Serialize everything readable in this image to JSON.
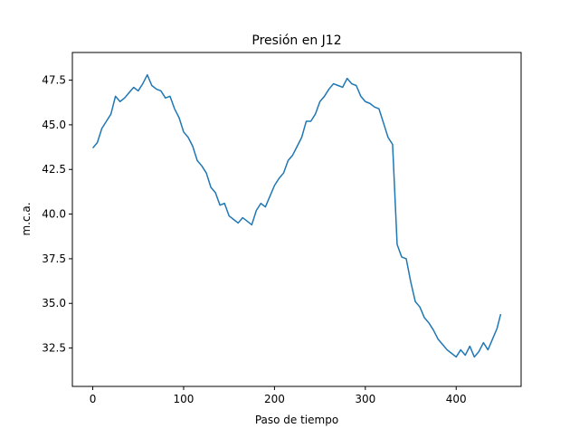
{
  "chart_data": {
    "type": "line",
    "title": "Presión en J12",
    "x_label": "Paso de tiempo",
    "y_label": "m.c.a.",
    "x": [
      0,
      5,
      10,
      15,
      20,
      25,
      30,
      35,
      40,
      45,
      50,
      55,
      60,
      65,
      70,
      75,
      80,
      85,
      90,
      95,
      100,
      105,
      110,
      115,
      120,
      125,
      130,
      135,
      140,
      145,
      150,
      155,
      160,
      165,
      170,
      175,
      180,
      185,
      190,
      195,
      200,
      205,
      210,
      215,
      220,
      225,
      230,
      235,
      240,
      245,
      250,
      255,
      260,
      265,
      270,
      275,
      280,
      285,
      290,
      295,
      300,
      305,
      310,
      315,
      320,
      325,
      330,
      335,
      340,
      345,
      350,
      355,
      360,
      365,
      370,
      375,
      380,
      385,
      390,
      395,
      400,
      405,
      410,
      415,
      420,
      425,
      430,
      435,
      440,
      445,
      449
    ],
    "series": [
      {
        "name": "J12",
        "color": "#1f77b4",
        "values": [
          43.7,
          44.0,
          44.8,
          45.2,
          45.6,
          46.6,
          46.3,
          46.5,
          46.8,
          47.1,
          46.9,
          47.3,
          47.8,
          47.2,
          47.0,
          46.9,
          46.5,
          46.6,
          45.9,
          45.4,
          44.6,
          44.3,
          43.8,
          43.0,
          42.7,
          42.3,
          41.5,
          41.2,
          40.5,
          40.6,
          39.9,
          39.7,
          39.5,
          39.8,
          39.6,
          39.4,
          40.2,
          40.6,
          40.4,
          41.0,
          41.6,
          42.0,
          42.3,
          43.0,
          43.3,
          43.8,
          44.3,
          45.2,
          45.2,
          45.6,
          46.3,
          46.6,
          47.0,
          47.3,
          47.2,
          47.1,
          47.6,
          47.3,
          47.2,
          46.6,
          46.3,
          46.2,
          46.0,
          45.9,
          45.1,
          44.3,
          43.9,
          38.3,
          37.6,
          37.5,
          36.2,
          35.1,
          34.8,
          34.2,
          33.9,
          33.5,
          33.0,
          32.7,
          32.4,
          32.2,
          32.0,
          32.4,
          32.1,
          32.6,
          32.0,
          32.3,
          32.8,
          32.4,
          33.0,
          33.6,
          34.4
        ]
      }
    ],
    "xlim": [
      -22.45,
      471.45
    ],
    "ylim": [
      30.35,
      49.05
    ],
    "xticks": [
      0,
      100,
      200,
      300,
      400
    ],
    "yticks": [
      32.5,
      {
        "value": 35,
        "label": "35.0"
      },
      37.5,
      {
        "value": 40,
        "label": "40.0"
      },
      42.5,
      {
        "value": 45,
        "label": "45.0"
      },
      47.5
    ]
  }
}
